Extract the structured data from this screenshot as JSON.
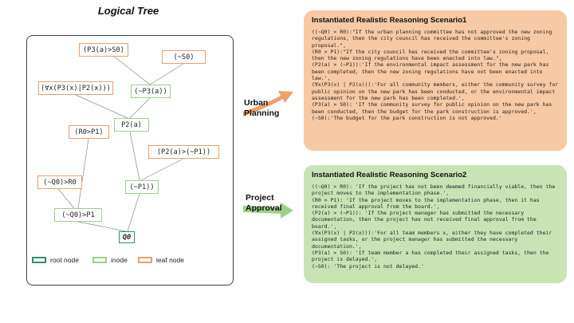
{
  "tree_title": "Logical Tree",
  "nodes": {
    "p3_s0": "(P3(a)>S0)",
    "not_s0": "(~S0)",
    "forall": "(∀x(P3(x)|P2(x)))",
    "not_p3": "(~P3(a))",
    "p2a": "P2(a)",
    "r0_p1": "(R0>P1)",
    "p2_not_p1": "(P2(a)>(~P1))",
    "not_q0_r0": "(~Q0)>R0",
    "not_p1": "(~P1))",
    "not_q0_p1": "(~Q0)>P1",
    "q0": "Q0"
  },
  "legend": {
    "root": "root node",
    "inode": "inode",
    "leaf": "leaf node"
  },
  "arrows": {
    "urban": "Urban Planning",
    "project": "Project Approval"
  },
  "colors": {
    "leaf": "#e9a06b",
    "inode": "#9fd08a",
    "root": "#2e8f6e",
    "arrow_urban": "#ef9f6b",
    "arrow_project": "#9fd08a"
  },
  "scenario1": {
    "title": "Instantiated Realistic Reasoning Scenario1",
    "text": "((~Q0) > R0):\"If the urban planning committee has not approved the new zoning regulations, then the city council has received the committee's zoning proposal.\",\n(R0 > P1):\"If the city council has received the committee's zoning proposal, then the new zoning regulations have been enacted into law.\",\n(P2(a) > (~P1)):'If the environmental impact assessment for the new park has been completed, then the new zoning regulations have not been enacted into law.',\n(∀x(P3(x) | P2(x))):'For all community members, either the community survey for public opinion on the new park has been conducted, or the environmental impact assessment for the new park has been completed.',\n(P3(a) > S0): 'If the community survey for public opinion on the new park has been conducted, then the budget for the park construction is approved.',\n(~S0):'The budget for the park construction is not approved.'"
  },
  "scenario2": {
    "title": "Instantiated Realistic Reasoning Scenario2",
    "text": "((~Q0) > R0): 'If the project has not been deemed financially viable, then the project moves to the implementation phase.',\n(R0 > P1): 'If the project moves to the implementation phase, then it has received final approval from the board.',\n(P2(a) > (~P1)): 'If the project manager has submitted the necessary documentation, then the project has not received final approval from the board.',\n(∀x(P3(x) | P2(x))):'For all team members x, either they have completed their assigned tasks, or the project manager has submitted the necessary documentation.',\n(P3(a) > S0): 'If team member a has completed their assigned tasks, then the project is delayed.',\n(~S0): 'The project is not delayed.'"
  }
}
